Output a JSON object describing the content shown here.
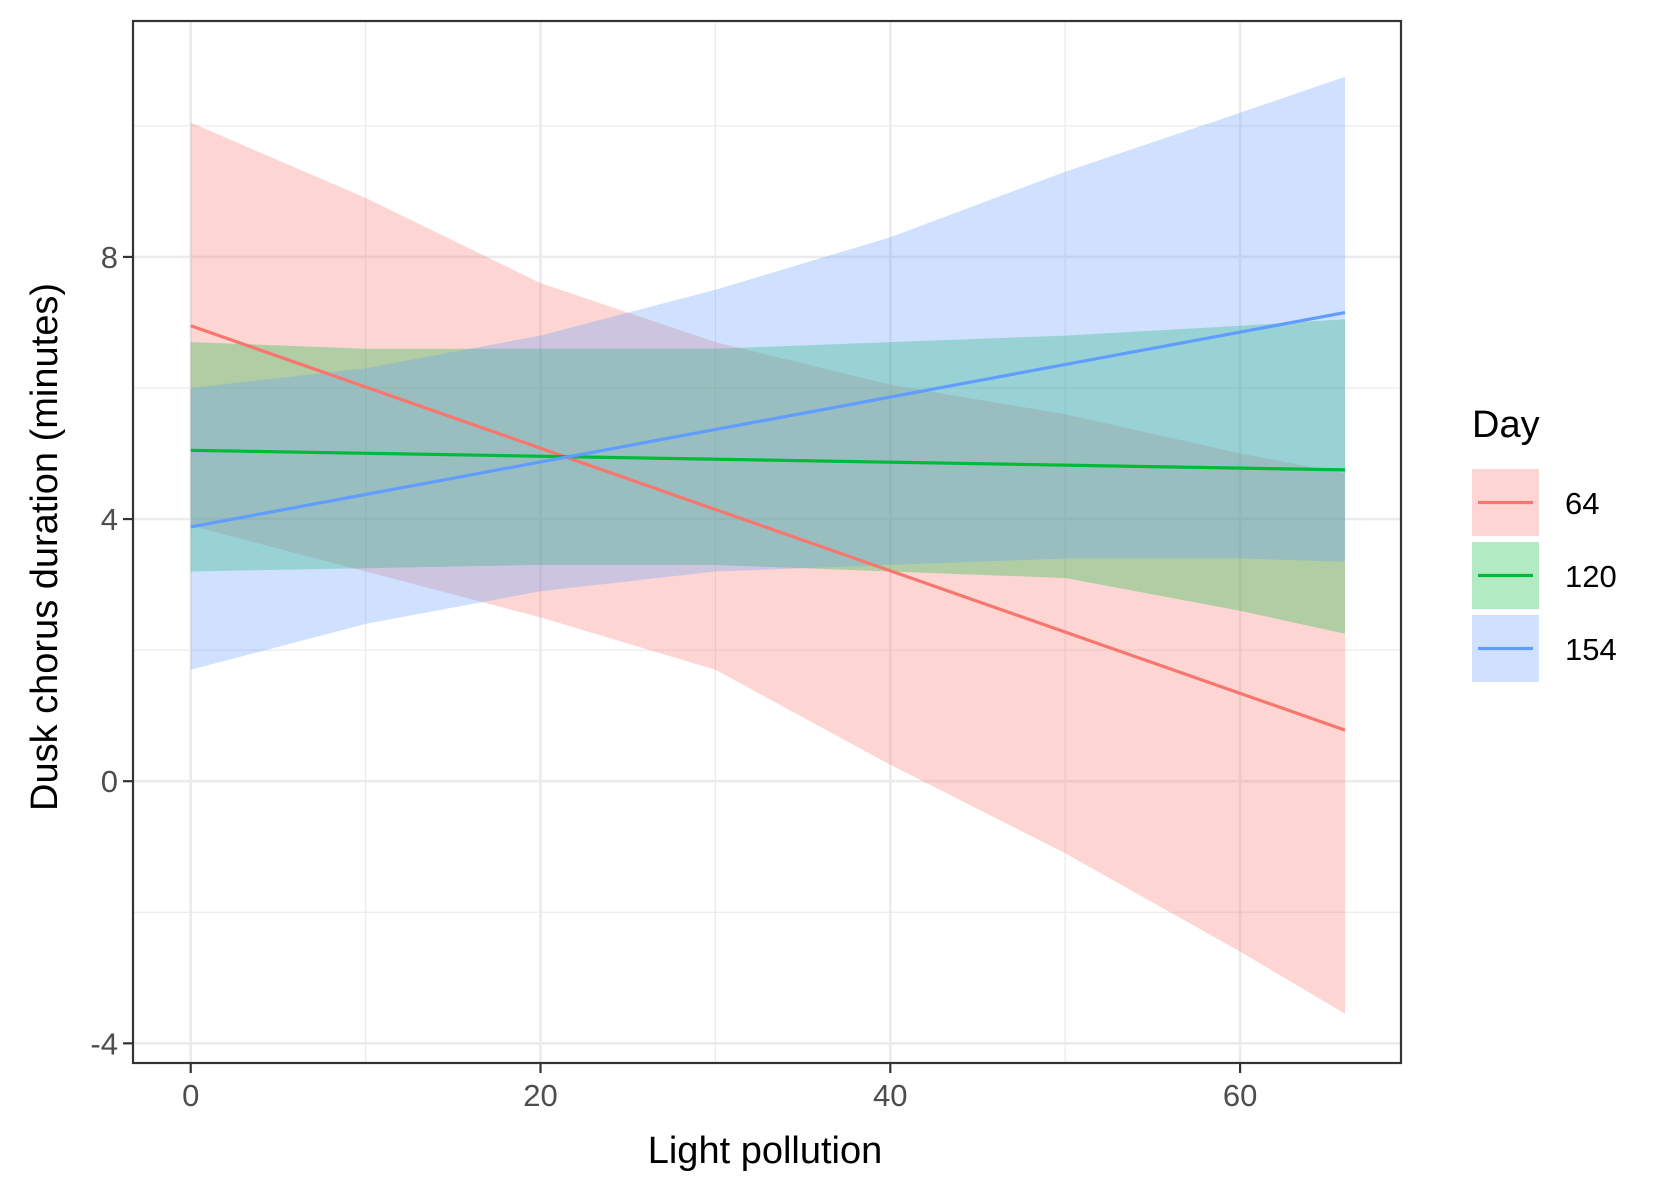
{
  "chart_data": {
    "type": "line",
    "title": "",
    "xlabel": "Light pollution",
    "ylabel": "Dusk chorus duration (minutes)",
    "xlim": [
      -3.3,
      69.2
    ],
    "ylim": [
      -4.3,
      11.6
    ],
    "x_ticks": [
      0,
      20,
      40,
      60
    ],
    "x_tick_labels": [
      "0",
      "20",
      "40",
      "60"
    ],
    "y_ticks": [
      -4,
      0,
      4,
      8
    ],
    "y_tick_labels": [
      "-4",
      "0",
      "4",
      "8"
    ],
    "grid": true,
    "legend": {
      "title": "Day",
      "position": "right"
    },
    "series": [
      {
        "name": "64",
        "color": "#F8766D",
        "x": [
          0,
          66
        ],
        "y": [
          6.95,
          0.78
        ],
        "ribbon": {
          "x": [
            0,
            10,
            20,
            30,
            40,
            50,
            60,
            66
          ],
          "lower": [
            3.9,
            3.2,
            2.5,
            1.7,
            0.25,
            -1.1,
            -2.6,
            -3.55
          ],
          "upper": [
            10.05,
            8.9,
            7.6,
            6.7,
            6.05,
            5.6,
            5.0,
            4.7
          ]
        }
      },
      {
        "name": "120",
        "color": "#00BA38",
        "x": [
          0,
          66
        ],
        "y": [
          5.05,
          4.75
        ],
        "ribbon": {
          "x": [
            0,
            10,
            20,
            30,
            40,
            50,
            60,
            66
          ],
          "lower": [
            3.2,
            3.25,
            3.3,
            3.3,
            3.2,
            3.1,
            2.6,
            2.25
          ],
          "upper": [
            6.7,
            6.6,
            6.6,
            6.6,
            6.7,
            6.8,
            6.95,
            7.05
          ]
        }
      },
      {
        "name": "154",
        "color": "#619CFF",
        "x": [
          0,
          66
        ],
        "y": [
          3.88,
          7.15
        ],
        "ribbon": {
          "x": [
            0,
            10,
            20,
            30,
            40,
            50,
            60,
            66
          ],
          "lower": [
            1.7,
            2.4,
            2.9,
            3.2,
            3.3,
            3.4,
            3.4,
            3.35
          ],
          "upper": [
            6.0,
            6.3,
            6.8,
            7.5,
            8.3,
            9.3,
            10.2,
            10.75
          ]
        }
      }
    ]
  }
}
